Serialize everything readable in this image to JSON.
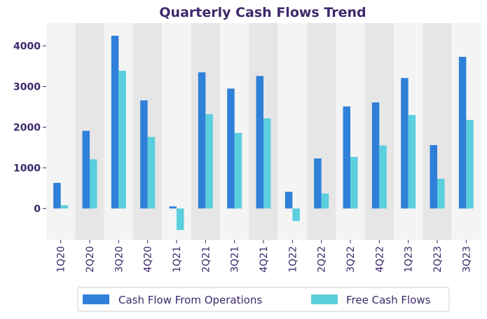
{
  "chart_data": {
    "type": "bar",
    "title": "Quarterly Cash Flows Trend",
    "categories": [
      "1Q20",
      "2Q20",
      "3Q20",
      "4Q20",
      "1Q21",
      "2Q21",
      "3Q21",
      "4Q21",
      "1Q22",
      "2Q22",
      "3Q22",
      "4Q22",
      "1Q23",
      "2Q23",
      "3Q23"
    ],
    "series": [
      {
        "name": "Cash Flow From Operations",
        "color": "#2f80d8",
        "values": [
          630,
          1910,
          4250,
          2660,
          50,
          3350,
          2950,
          3260,
          410,
          1230,
          2510,
          2610,
          3210,
          1560,
          3730
        ]
      },
      {
        "name": "Free Cash Flows",
        "color": "#5bcfde",
        "values": [
          80,
          1210,
          3390,
          1760,
          -530,
          2320,
          1860,
          2220,
          -310,
          370,
          1270,
          1550,
          2300,
          730,
          2180
        ]
      }
    ],
    "yticks": [
      0,
      1000,
      2000,
      3000,
      4000
    ],
    "ylim": [
      -770,
      4560
    ],
    "xlabel": "",
    "ylabel": "",
    "legend_position": "bottom",
    "band_colors": [
      "#f4f4f4",
      "#e6e6e6"
    ]
  }
}
